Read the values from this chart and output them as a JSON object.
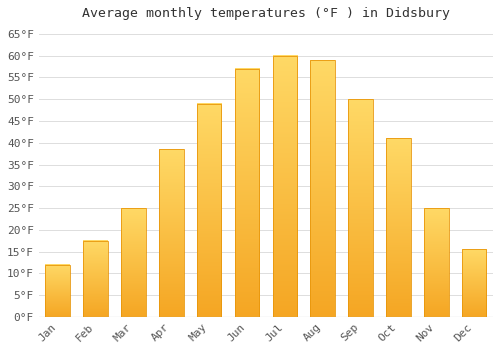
{
  "title": "Average monthly temperatures (°F ) in Didsbury",
  "months": [
    "Jan",
    "Feb",
    "Mar",
    "Apr",
    "May",
    "Jun",
    "Jul",
    "Aug",
    "Sep",
    "Oct",
    "Nov",
    "Dec"
  ],
  "values": [
    12,
    17.5,
    25,
    38.5,
    49,
    57,
    60,
    59,
    50,
    41,
    25,
    15.5
  ],
  "bar_color_bottom": "#F5A623",
  "bar_color_top": "#FFD966",
  "bar_edge_color": "#E8960A",
  "background_color": "#FFFFFF",
  "grid_color": "#DDDDDD",
  "ylim": [
    0,
    67
  ],
  "yticks": [
    0,
    5,
    10,
    15,
    20,
    25,
    30,
    35,
    40,
    45,
    50,
    55,
    60,
    65
  ],
  "ytick_labels": [
    "0°F",
    "5°F",
    "10°F",
    "15°F",
    "20°F",
    "25°F",
    "30°F",
    "35°F",
    "40°F",
    "45°F",
    "50°F",
    "55°F",
    "60°F",
    "65°F"
  ],
  "title_fontsize": 9.5,
  "tick_fontsize": 8,
  "label_color": "#555555",
  "font_family": "monospace"
}
